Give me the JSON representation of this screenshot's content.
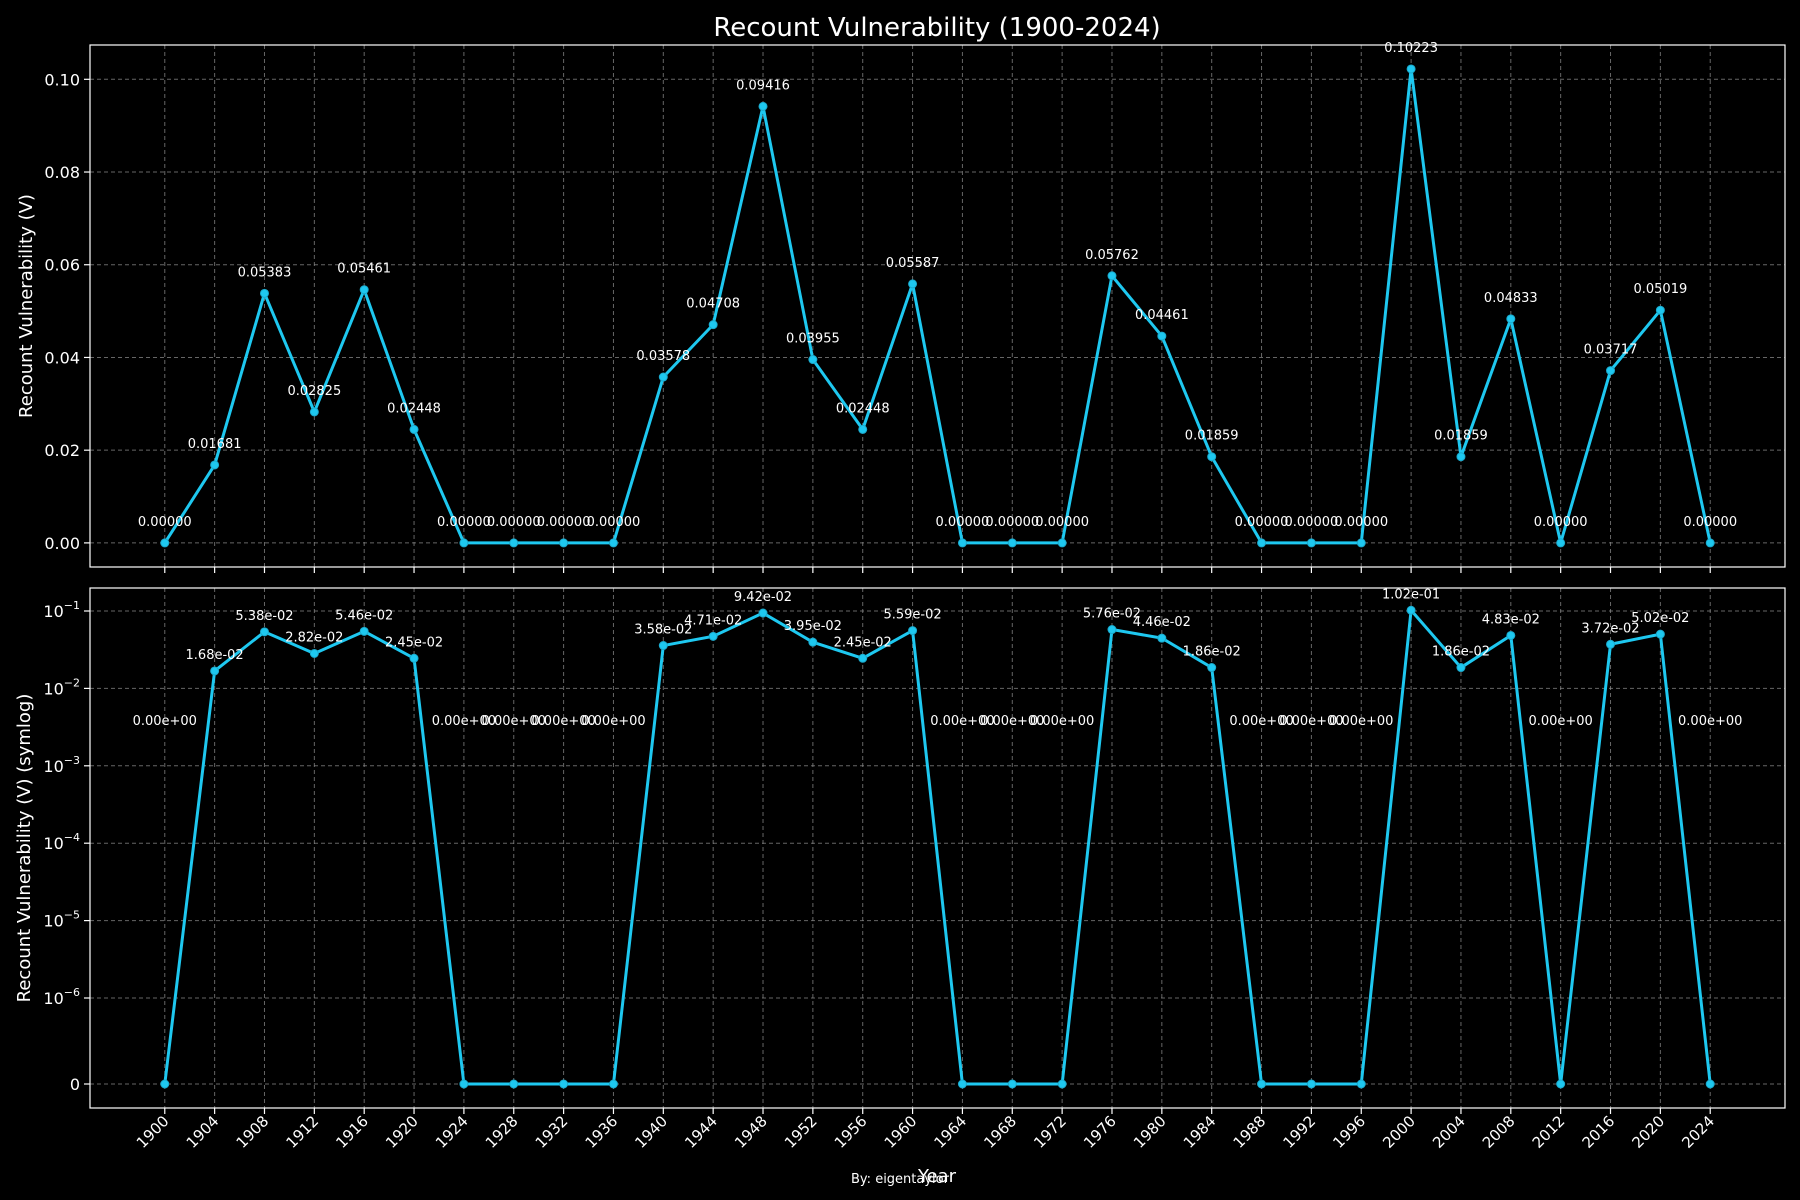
{
  "title": "Recount Vulnerability (1900-2024)",
  "footer": "By: eigentaylor",
  "chart_data": [
    {
      "type": "line",
      "scale": "linear",
      "ylabel": "Recount Vulnerability (V)",
      "ylim": [
        -0.0052,
        0.1074
      ],
      "yticks": [
        0.0,
        0.02,
        0.04,
        0.06,
        0.08,
        0.1
      ],
      "yticklabels": [
        "0.00",
        "0.02",
        "0.04",
        "0.06",
        "0.08",
        "0.10"
      ],
      "grid": true
    },
    {
      "type": "line",
      "scale": "symlog",
      "ylabel": "Recount Vulnerability (V) (symlog)",
      "yticks": [
        0,
        1e-06,
        1e-05,
        0.0001,
        0.001,
        0.01,
        0.1
      ],
      "yticklabels": [
        "0",
        "10^-6",
        "10^-5",
        "10^-4",
        "10^-3",
        "10^-2",
        "10^-1"
      ],
      "grid": true
    }
  ],
  "shared": {
    "xlabel": "Year",
    "xlim": [
      1894,
      2030
    ],
    "x": [
      1900,
      1904,
      1908,
      1912,
      1916,
      1920,
      1924,
      1928,
      1932,
      1936,
      1940,
      1944,
      1948,
      1952,
      1956,
      1960,
      1964,
      1968,
      1972,
      1976,
      1980,
      1984,
      1988,
      1992,
      1996,
      2000,
      2004,
      2008,
      2012,
      2016,
      2020,
      2024
    ],
    "values": [
      0.0,
      0.01681,
      0.05383,
      0.02825,
      0.05461,
      0.02448,
      0.0,
      0.0,
      0.0,
      0.0,
      0.03578,
      0.04708,
      0.09416,
      0.03955,
      0.02448,
      0.05587,
      0.0,
      0.0,
      0.0,
      0.05762,
      0.04461,
      0.01859,
      0.0,
      0.0,
      0.0,
      0.10223,
      0.01859,
      0.04833,
      0.0,
      0.03717,
      0.05019,
      0.0
    ],
    "labels_top": [
      "0.00000",
      "0.01681",
      "0.05383",
      "0.02825",
      "0.05461",
      "0.02448",
      "0.00000",
      "0.00000",
      "0.00000",
      "0.00000",
      "0.03578",
      "0.04708",
      "0.09416",
      "0.03955",
      "0.02448",
      "0.05587",
      "0.00000",
      "0.00000",
      "0.00000",
      "0.05762",
      "0.04461",
      "0.01859",
      "0.00000",
      "0.00000",
      "0.00000",
      "0.10223",
      "0.01859",
      "0.04833",
      "0.00000",
      "0.03717",
      "0.05019",
      "0.00000"
    ],
    "labels_bottom": [
      "0.00e+00",
      "1.68e-02",
      "5.38e-02",
      "2.82e-02",
      "5.46e-02",
      "2.45e-02",
      "0.00e+00",
      "0.00e+00",
      "0.00e+00",
      "0.00e+00",
      "3.58e-02",
      "4.71e-02",
      "9.42e-02",
      "3.95e-02",
      "2.45e-02",
      "5.59e-02",
      "0.00e+00",
      "0.00e+00",
      "0.00e+00",
      "5.76e-02",
      "4.46e-02",
      "1.86e-02",
      "0.00e+00",
      "0.00e+00",
      "0.00e+00",
      "1.02e-01",
      "1.86e-02",
      "4.83e-02",
      "0.00e+00",
      "3.72e-02",
      "5.02e-02",
      "0.00e+00"
    ]
  }
}
